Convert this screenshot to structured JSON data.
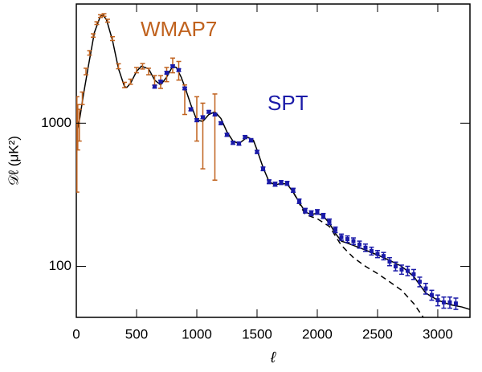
{
  "chart_data": {
    "type": "errorbar",
    "xlabel": "ℓ",
    "ylabel": "𝒟ℓ (μK²)",
    "xlim": [
      0,
      3267
    ],
    "xticks": [
      0,
      500,
      1000,
      1500,
      2000,
      2500,
      3000
    ],
    "ylim": [
      44,
      6800
    ],
    "yticks": [
      100,
      1000
    ],
    "log_y": true,
    "series": [
      {
        "name": "WMAP7",
        "color": "#c0621e",
        "marker": "none",
        "x": [
          5,
          12,
          25,
          50,
          80,
          110,
          140,
          170,
          200,
          230,
          260,
          300,
          350,
          400,
          450,
          500,
          550,
          600,
          650,
          700,
          750,
          800,
          850,
          900,
          1000,
          1050,
          1150
        ],
        "values": [
          930,
          1000,
          1000,
          1500,
          2300,
          3100,
          4100,
          5000,
          5600,
          5700,
          5200,
          3900,
          2500,
          1850,
          1950,
          2350,
          2500,
          2300,
          2000,
          1950,
          2200,
          2550,
          2350,
          1500,
          1140,
          930,
          1000
        ],
        "errors": [
          600,
          350,
          250,
          150,
          120,
          110,
          110,
          110,
          120,
          120,
          120,
          120,
          100,
          80,
          80,
          100,
          110,
          120,
          150,
          200,
          250,
          300,
          350,
          350,
          390,
          450,
          600
        ]
      },
      {
        "name": "SPT",
        "color": "#1a1aa8",
        "marker": "square",
        "x": [
          650,
          700,
          750,
          800,
          850,
          900,
          950,
          1000,
          1050,
          1100,
          1150,
          1200,
          1250,
          1300,
          1350,
          1400,
          1450,
          1500,
          1550,
          1600,
          1650,
          1700,
          1750,
          1800,
          1850,
          1900,
          1950,
          2000,
          2050,
          2100,
          2150,
          2200,
          2250,
          2300,
          2350,
          2400,
          2450,
          2500,
          2550,
          2600,
          2650,
          2700,
          2750,
          2800,
          2850,
          2900,
          2950,
          3000,
          3050,
          3100,
          3150
        ],
        "values": [
          1800,
          1950,
          2250,
          2500,
          2350,
          1750,
          1250,
          1050,
          1100,
          1200,
          1150,
          1000,
          830,
          730,
          720,
          800,
          760,
          630,
          480,
          390,
          375,
          385,
          380,
          340,
          285,
          245,
          235,
          240,
          225,
          205,
          180,
          160,
          155,
          150,
          142,
          135,
          128,
          122,
          118,
          108,
          100,
          95,
          93,
          88,
          78,
          70,
          63,
          58,
          56,
          56,
          55
        ],
        "errors": [
          40,
          40,
          45,
          50,
          45,
          35,
          30,
          25,
          25,
          25,
          25,
          22,
          20,
          18,
          18,
          20,
          20,
          16,
          14,
          12,
          12,
          12,
          12,
          11,
          10,
          9,
          9,
          9,
          9,
          9,
          8,
          8,
          8,
          8,
          8,
          8,
          8,
          7,
          7,
          7,
          7,
          7,
          7,
          7,
          6,
          6,
          5,
          5,
          5,
          5,
          5
        ]
      }
    ],
    "model_lines": [
      {
        "color": "#000000",
        "dashed": false,
        "x": [
          2,
          10,
          30,
          60,
          100,
          150,
          200,
          220,
          250,
          300,
          350,
          400,
          420,
          450,
          500,
          540,
          600,
          650,
          700,
          750,
          800,
          830,
          870,
          900,
          950,
          1000,
          1050,
          1100,
          1150,
          1200,
          1250,
          1300,
          1350,
          1420,
          1470,
          1500,
          1550,
          1600,
          1650,
          1700,
          1750,
          1800,
          1850,
          1900,
          1950,
          2000,
          2050,
          2100,
          2150,
          2200,
          2250,
          2300,
          2400,
          2500,
          2600,
          2700,
          2800,
          2900,
          3000,
          3100,
          3200,
          3267
        ],
        "values": [
          1000,
          900,
          1100,
          1600,
          2500,
          4300,
          5600,
          5700,
          5300,
          3800,
          2400,
          1800,
          1780,
          1900,
          2300,
          2500,
          2400,
          2000,
          1850,
          2100,
          2500,
          2450,
          2100,
          1800,
          1350,
          1050,
          1030,
          1150,
          1200,
          1080,
          870,
          750,
          720,
          800,
          760,
          650,
          490,
          390,
          370,
          380,
          375,
          330,
          280,
          240,
          230,
          235,
          225,
          200,
          170,
          150,
          145,
          140,
          130,
          120,
          110,
          100,
          85,
          65,
          58,
          54,
          52,
          50
        ]
      },
      {
        "color": "#000000",
        "dashed": true,
        "x": [
          1800,
          1900,
          2000,
          2100,
          2200,
          2300,
          2400,
          2500,
          2600,
          2700,
          2800,
          2880
        ],
        "values": [
          330,
          230,
          215,
          190,
          140,
          115,
          100,
          89,
          78,
          68,
          55,
          44
        ]
      }
    ]
  }
}
